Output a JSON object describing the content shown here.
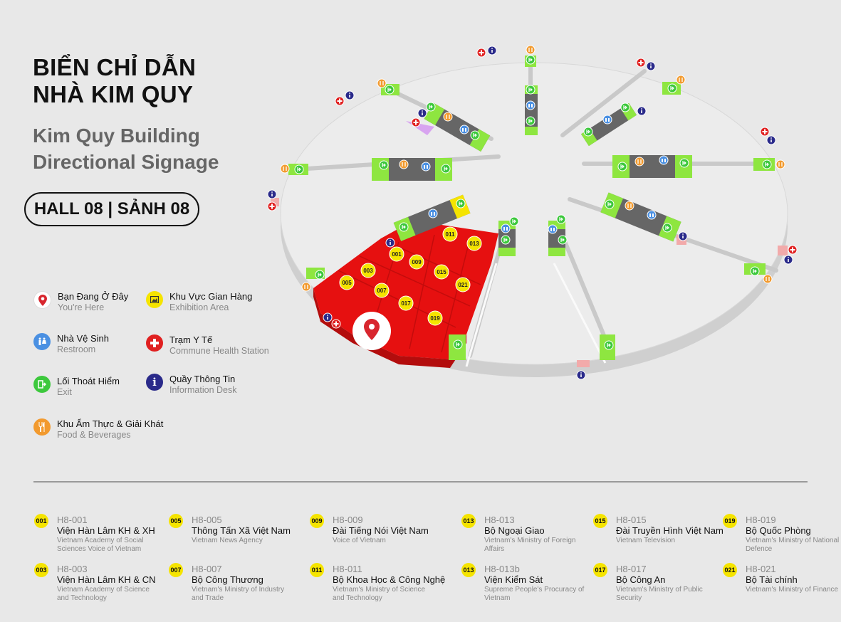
{
  "title": {
    "line1": "BIỂN CHỈ DẪN",
    "line2": "NHÀ KIM QUY"
  },
  "subtitle": {
    "line1": "Kim Quy Building",
    "line2": "Directional Signage"
  },
  "hall": "HALL 08 | SẢNH 08",
  "legend": [
    {
      "vn": "Bạn Đang Ở Đây",
      "en": "You're Here",
      "icon": "location-pin-icon",
      "color": "#ffffff"
    },
    {
      "vn": "Khu Vực Gian Hàng",
      "en": "Exhibition Area",
      "icon": "exhibition-icon",
      "color": "#f5e400"
    },
    {
      "vn": "Nhà Vệ Sinh",
      "en": "Restroom",
      "icon": "restroom-icon",
      "color": "#4a90e2"
    },
    {
      "vn": "Trạm Y Tế",
      "en": "Commune Health Station",
      "icon": "medical-cross-icon",
      "color": "#e02020"
    },
    {
      "vn": "Lối Thoát Hiểm",
      "en": "Exit",
      "icon": "exit-icon",
      "color": "#3cc83c"
    },
    {
      "vn": "Quầy Thông Tin",
      "en": "Information Desk",
      "icon": "info-icon",
      "color": "#2a2a8a"
    },
    {
      "vn": "Khu Ẩm Thực & Giải Khát",
      "en": "Food & Beverages",
      "icon": "food-icon",
      "color": "#f29a2e"
    }
  ],
  "map_booths": [
    "001",
    "003",
    "005",
    "007",
    "009",
    "011",
    "013",
    "015",
    "017",
    "019",
    "021"
  ],
  "directory": [
    {
      "num": "001",
      "code": "H8-001",
      "name": "Viện Hàn Lâm KH & XH",
      "en": "Vietnam Academy of Social Sciences Voice of Vietnam"
    },
    {
      "num": "003",
      "code": "H8-003",
      "name": "Viện Hàn Lâm KH & CN",
      "en": "Vietnam Academy of Science and Technology"
    },
    {
      "num": "005",
      "code": "H8-005",
      "name": "Thông Tấn Xã Việt Nam",
      "en": "Vietnam News Agency"
    },
    {
      "num": "007",
      "code": "H8-007",
      "name": "Bộ Công Thương",
      "en": "Vietnam's Ministry of Industry and Trade"
    },
    {
      "num": "009",
      "code": "H8-009",
      "name": "Đài Tiếng Nói Việt Nam",
      "en": "Voice of Vietnam"
    },
    {
      "num": "011",
      "code": "H8-011",
      "name": "Bộ Khoa Học & Công Nghệ",
      "en": "Vietnam's Ministry of Science and Technology"
    },
    {
      "num": "013",
      "code": "H8-013",
      "name": "Bộ Ngoại Giao",
      "en": "Vietnam's Ministry of Foreign Affairs"
    },
    {
      "num": "013",
      "code": "H8-013b",
      "name": "Viện Kiểm Sát",
      "en": "Supreme People's Procuracy of Vietnam"
    },
    {
      "num": "015",
      "code": "H8-015",
      "name": "Đài Truyền Hình Việt Nam",
      "en": "Vietnam Television"
    },
    {
      "num": "017",
      "code": "H8-017",
      "name": "Bộ Công An",
      "en": "Vietnam's Ministry of Public Security"
    },
    {
      "num": "019",
      "code": "H8-019",
      "name": "Bộ Quốc Phòng",
      "en": "Vietnam's Ministry of National Defence"
    },
    {
      "num": "021",
      "code": "H8-021",
      "name": "Bộ Tài chính",
      "en": "Vietnam's Ministry of Finance"
    }
  ]
}
